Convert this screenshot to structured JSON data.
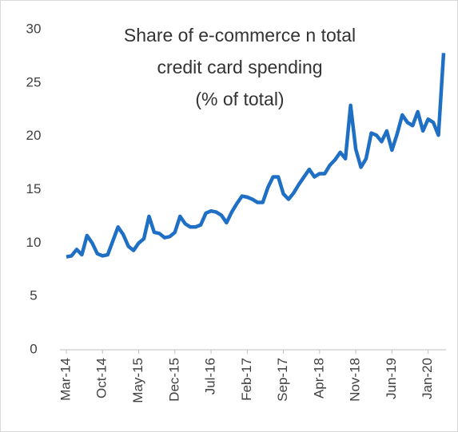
{
  "chart_data": {
    "type": "line",
    "title": [
      "Share of e-commerce n total",
      "credit card spending",
      "(% of total)"
    ],
    "categories": [
      "Mar-14",
      null,
      null,
      null,
      null,
      null,
      null,
      "Oct-14",
      null,
      null,
      null,
      null,
      null,
      null,
      "May-15",
      null,
      null,
      null,
      null,
      null,
      null,
      "Dec-15",
      null,
      null,
      null,
      null,
      null,
      null,
      "Jul-16",
      null,
      null,
      null,
      null,
      null,
      null,
      "Feb-17",
      null,
      null,
      null,
      null,
      null,
      null,
      "Sep-17",
      null,
      null,
      null,
      null,
      null,
      null,
      "Apr-18",
      null,
      null,
      null,
      null,
      null,
      null,
      "Nov-18",
      null,
      null,
      null,
      null,
      null,
      null,
      "Jun-19",
      null,
      null,
      null,
      null,
      null,
      null,
      "Jan-20",
      null,
      null,
      null
    ],
    "values": [
      8.7,
      8.8,
      9.4,
      8.9,
      10.7,
      10.0,
      9.0,
      8.8,
      8.9,
      10.2,
      11.5,
      10.8,
      9.7,
      9.3,
      10.0,
      10.4,
      12.5,
      11.0,
      10.9,
      10.5,
      10.6,
      11.0,
      12.5,
      11.8,
      11.5,
      11.5,
      11.7,
      12.8,
      13.0,
      12.9,
      12.6,
      11.9,
      12.9,
      13.7,
      14.4,
      14.3,
      14.1,
      13.8,
      13.8,
      15.2,
      16.2,
      16.2,
      14.6,
      14.1,
      14.7,
      15.5,
      16.2,
      16.9,
      16.2,
      16.5,
      16.5,
      17.3,
      17.8,
      18.5,
      17.9,
      22.9,
      18.8,
      17.1,
      17.9,
      20.3,
      20.1,
      19.5,
      20.5,
      18.7,
      20.2,
      22.0,
      21.3,
      21.0,
      22.3,
      20.5,
      21.6,
      21.3,
      20.1,
      27.8
    ],
    "color": "#1f6fc5",
    "ylim": [
      0,
      30
    ],
    "yticks": [
      0,
      5,
      10,
      15,
      20,
      25,
      30
    ],
    "grid": false
  }
}
